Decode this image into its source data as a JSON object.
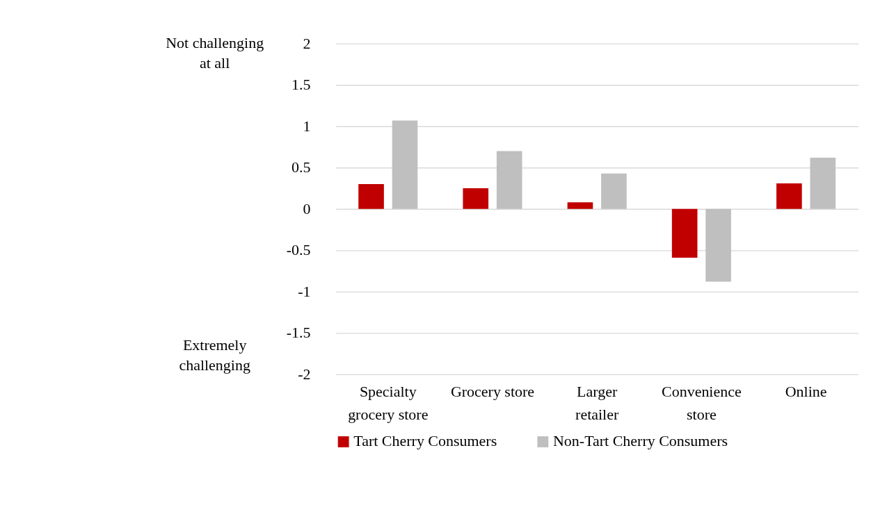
{
  "chart_data": {
    "type": "bar",
    "categories": [
      "Specialty grocery store",
      "Grocery store",
      "Larger retailer",
      "Convenience store",
      "Online"
    ],
    "series": [
      {
        "name": "Tart Cherry Consumers",
        "color": "#c00000",
        "values": [
          0.3,
          0.25,
          0.08,
          -0.59,
          0.31
        ]
      },
      {
        "name": "Non-Tart Cherry Consumers",
        "color": "#bfbfbf",
        "values": [
          1.07,
          0.7,
          0.43,
          -0.88,
          0.62
        ]
      }
    ],
    "ylim": [
      -2,
      2
    ],
    "yticks": [
      -2,
      -1.5,
      -1,
      -0.5,
      0,
      0.5,
      1,
      1.5,
      2
    ],
    "grid": "y",
    "legend": "bottom",
    "annotations": [
      "Not challenging at all",
      "Extremely challenging"
    ]
  }
}
